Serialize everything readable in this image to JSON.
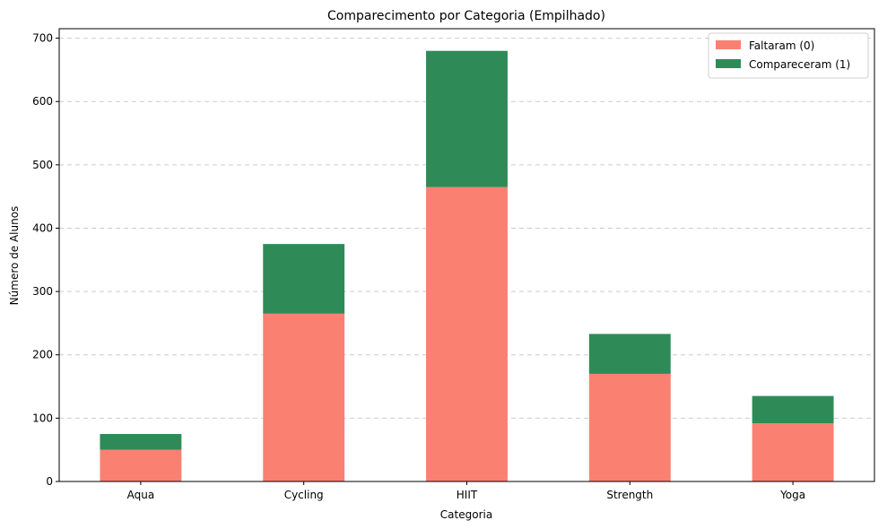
{
  "chart_data": {
    "type": "bar",
    "stacked": true,
    "title": "Comparecimento por Categoria (Empilhado)",
    "xlabel": "Categoria",
    "ylabel": "Número de Alunos",
    "categories": [
      "Aqua",
      "Cycling",
      "HIIT",
      "Strength",
      "Yoga"
    ],
    "series": [
      {
        "name": "Faltaram (0)",
        "color": "#fa8072",
        "values": [
          50,
          265,
          465,
          170,
          92
        ]
      },
      {
        "name": "Compareceram (1)",
        "color": "#2e8b57",
        "values": [
          25,
          110,
          215,
          63,
          43
        ]
      }
    ],
    "ylim": [
      0,
      715
    ],
    "yticks": [
      0,
      100,
      200,
      300,
      400,
      500,
      600,
      700
    ],
    "grid": "y-dashed",
    "legend_position": "top-right"
  }
}
